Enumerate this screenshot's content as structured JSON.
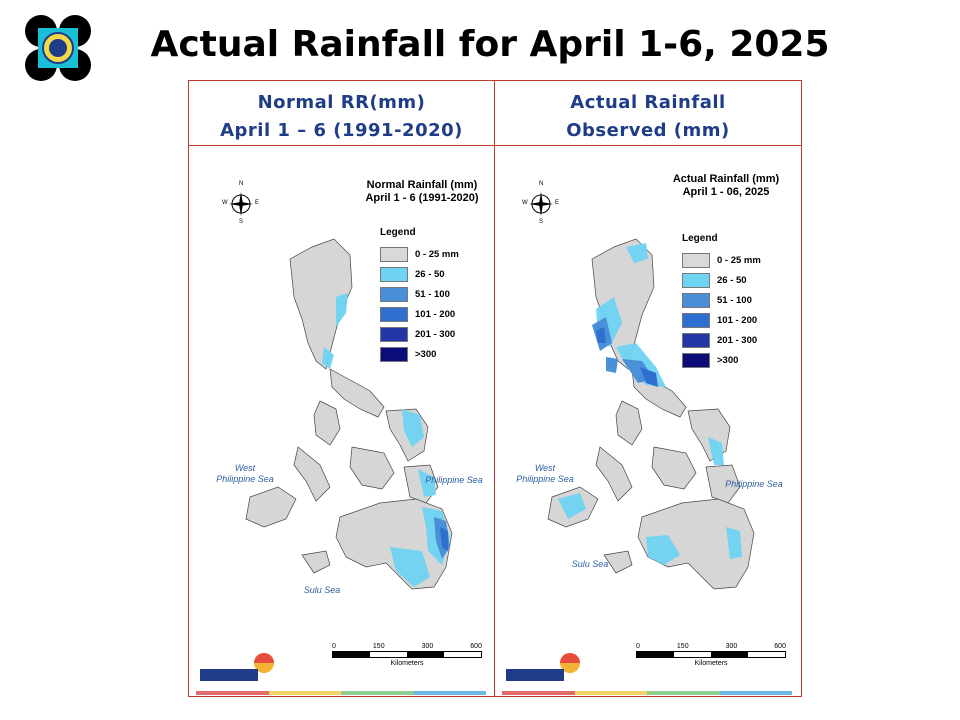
{
  "title": "Actual Rainfall for April 1-6, 2025",
  "left_header": {
    "line1": "Normal RR(mm)",
    "line2": "April 1 – 6 (1991-2020)"
  },
  "right_header": {
    "line1": "Actual Rainfall",
    "line2": "Observed (mm)"
  },
  "left_map": {
    "title_line1": "Normal Rainfall (mm)",
    "title_line2": "April 1 - 6 (1991-2020)"
  },
  "right_map": {
    "title_line1": "Actual Rainfall (mm)",
    "title_line2": "April 1 - 06, 2025"
  },
  "legend": {
    "title": "Legend",
    "items": [
      {
        "label": "0 - 25 mm",
        "color": "#d9d9d9"
      },
      {
        "label": "26 - 50",
        "color": "#6fd3f3"
      },
      {
        "label": "51 - 100",
        "color": "#4a90d9"
      },
      {
        "label": "101 - 200",
        "color": "#2f6fd0"
      },
      {
        "label": "201 - 300",
        "color": "#2236a8"
      },
      {
        "label": ">300",
        "color": "#0b0b7a"
      }
    ]
  },
  "seas": {
    "west_line1": "West",
    "west_line2": "Philippine Sea",
    "east": "Philippine Sea",
    "sulu": "Sulu Sea"
  },
  "compass": {
    "n": "N",
    "s": "S",
    "e": "E",
    "w": "W"
  },
  "scale": {
    "ticks": [
      "0",
      "150",
      "300",
      "600"
    ],
    "unit": "Kilometers"
  },
  "stripe_colors": [
    "#e06c6c",
    "#f2d36b",
    "#8fcf8f",
    "#6bb8e6"
  ]
}
